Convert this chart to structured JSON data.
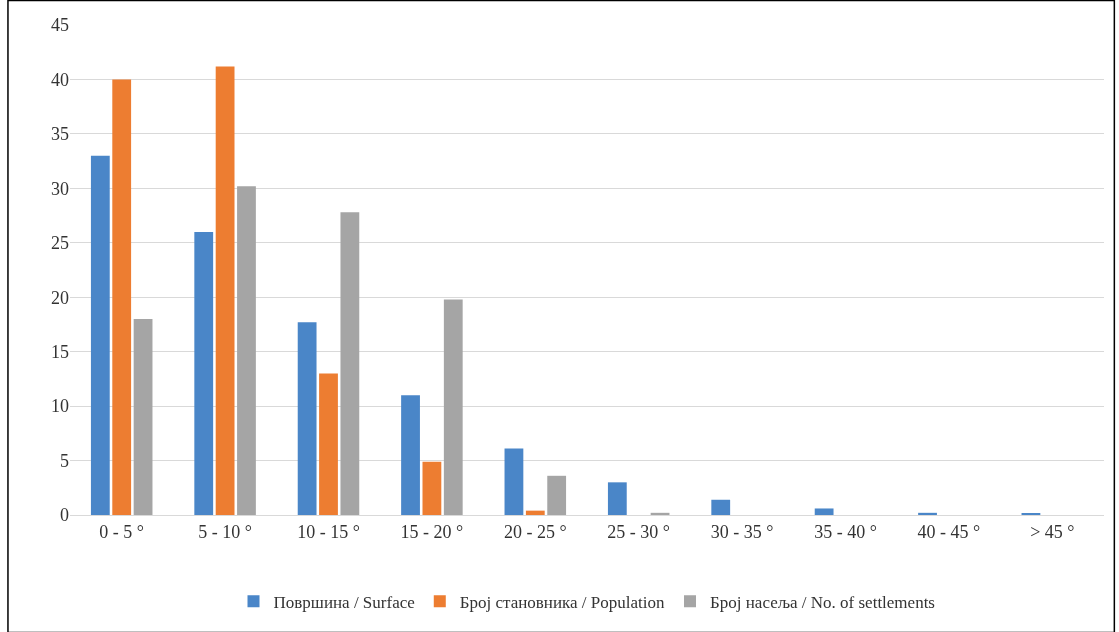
{
  "chart_data": {
    "type": "bar",
    "categories": [
      "0 - 5 °",
      "5 - 10 °",
      "10 - 15 °",
      "15 - 20 °",
      "20 - 25 °",
      "25 - 30 °",
      "30 - 35 °",
      "35 - 40 °",
      "40 - 45 °",
      "> 45 °"
    ],
    "series": [
      {
        "name": "Површина / Surface",
        "color": "#4a86c8",
        "values": [
          33,
          26,
          17.7,
          11,
          6.1,
          3,
          1.4,
          0.6,
          0.2,
          0.1
        ]
      },
      {
        "name": "Број становника / Population",
        "color": "#ed7d31",
        "values": [
          40,
          41.2,
          13,
          4.9,
          0.4,
          0,
          0,
          0,
          0,
          0
        ]
      },
      {
        "name": "Број насеља / No. of settlements",
        "color": "#a5a5a5",
        "values": [
          18,
          30.2,
          27.8,
          19.8,
          3.6,
          0.2,
          0,
          0,
          0,
          0
        ]
      }
    ],
    "ylim": [
      0,
      45
    ],
    "yticks": [
      0,
      5,
      10,
      15,
      20,
      25,
      30,
      35,
      40,
      45
    ],
    "grid": "y",
    "legend": "bottom"
  }
}
